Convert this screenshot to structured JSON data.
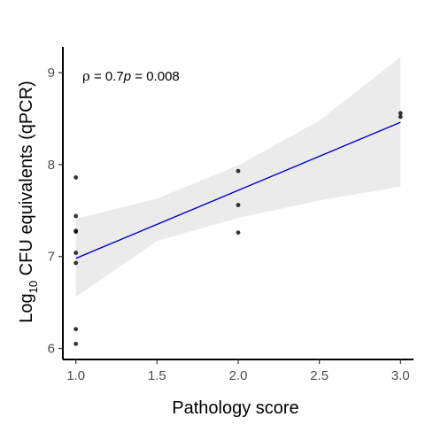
{
  "chart_data": {
    "type": "scatter",
    "xlabel": "Pathology score",
    "ylabel": {
      "prefix": "Log",
      "subscript": "10",
      "suffix": " CFU equivalents (qPCR)"
    },
    "xlim": [
      0.92,
      3.08
    ],
    "ylim": [
      5.88,
      9.28
    ],
    "x_ticks": [
      {
        "value": 1.0,
        "label": "1.0"
      },
      {
        "value": 1.5,
        "label": "1.5"
      },
      {
        "value": 2.0,
        "label": "2.0"
      },
      {
        "value": 2.5,
        "label": "2.5"
      },
      {
        "value": 3.0,
        "label": "3.0"
      }
    ],
    "y_ticks": [
      {
        "value": 6,
        "label": "6"
      },
      {
        "value": 7,
        "label": "7"
      },
      {
        "value": 8,
        "label": "8"
      },
      {
        "value": 9,
        "label": "9"
      }
    ],
    "points": [
      {
        "x": 1.0,
        "y": 7.86
      },
      {
        "x": 1.0,
        "y": 7.44
      },
      {
        "x": 1.0,
        "y": 7.28
      },
      {
        "x": 1.0,
        "y": 7.27
      },
      {
        "x": 1.0,
        "y": 7.04
      },
      {
        "x": 1.0,
        "y": 6.93
      },
      {
        "x": 1.0,
        "y": 6.21
      },
      {
        "x": 1.0,
        "y": 6.05
      },
      {
        "x": 2.0,
        "y": 7.93
      },
      {
        "x": 2.0,
        "y": 7.56
      },
      {
        "x": 2.0,
        "y": 7.26
      },
      {
        "x": 3.0,
        "y": 8.56
      },
      {
        "x": 3.0,
        "y": 8.52
      }
    ],
    "fit_line": {
      "x": [
        1.0,
        3.0
      ],
      "y": [
        6.98,
        8.46
      ]
    },
    "confidence_band": {
      "x": [
        1.0,
        1.5,
        2.0,
        2.5,
        3.0
      ],
      "upper": [
        7.41,
        7.63,
        7.99,
        8.48,
        9.17
      ],
      "lower": [
        6.56,
        7.17,
        7.42,
        7.61,
        7.76
      ]
    },
    "annotation": {
      "rho_symbol": "ρ",
      "rho_eq": " = 0.7",
      "p_symbol": "p",
      "p_eq": " = 0.008"
    },
    "colors": {
      "fit_line": "#0000cc",
      "band": "#ebebeb",
      "points": "#111111",
      "axis": "#000000"
    },
    "grid": false,
    "legend": "none"
  }
}
